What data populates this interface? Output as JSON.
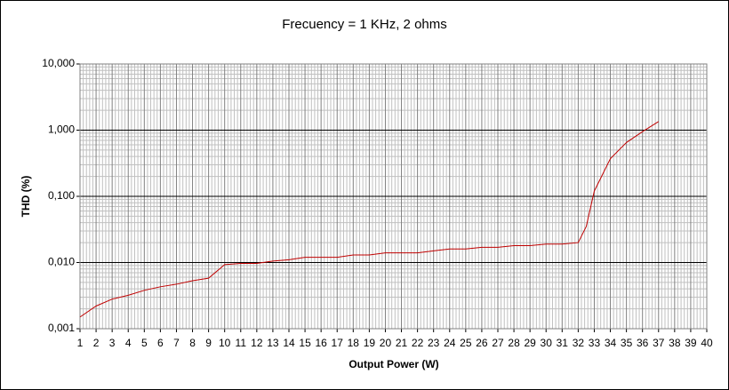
{
  "chart_data": {
    "type": "line",
    "title": "Frecuency = 1 KHz, 2 ohms",
    "x_label": "Output Power (W)",
    "y_label": "THD (%)",
    "x": [
      1,
      2,
      3,
      4,
      5,
      6,
      7,
      8,
      9,
      10,
      11,
      12,
      13,
      14,
      15,
      16,
      17,
      18,
      19,
      20,
      21,
      22,
      23,
      24,
      25,
      26,
      27,
      28,
      29,
      30,
      31,
      32,
      32.5,
      33,
      34,
      35,
      36,
      37
    ],
    "series": [
      {
        "color": "#c00000",
        "values": [
          0.0015,
          0.0022,
          0.0028,
          0.0032,
          0.0038,
          0.0043,
          0.0047,
          0.0053,
          0.0058,
          0.0093,
          0.0097,
          0.0097,
          0.0105,
          0.011,
          0.012,
          0.012,
          0.012,
          0.013,
          0.013,
          0.014,
          0.014,
          0.014,
          0.015,
          0.016,
          0.016,
          0.017,
          0.017,
          0.018,
          0.018,
          0.019,
          0.019,
          0.02,
          0.035,
          0.12,
          0.37,
          0.65,
          0.95,
          1.35
        ]
      }
    ],
    "xlim": [
      1,
      40
    ],
    "xticks": [
      1,
      2,
      3,
      4,
      5,
      6,
      7,
      8,
      9,
      10,
      11,
      12,
      13,
      14,
      15,
      16,
      17,
      18,
      19,
      20,
      21,
      22,
      23,
      24,
      25,
      26,
      27,
      28,
      29,
      30,
      31,
      32,
      33,
      34,
      35,
      36,
      37,
      38,
      39,
      40
    ],
    "ylim": [
      0.001,
      10
    ],
    "yticks": [
      {
        "value": 0.001,
        "label": "0,001"
      },
      {
        "value": 0.01,
        "label": "0,010"
      },
      {
        "value": 0.1,
        "label": "0,100"
      },
      {
        "value": 1,
        "label": "1,000"
      },
      {
        "value": 10,
        "label": "10,000"
      }
    ],
    "log_y": true,
    "grid": true,
    "minor_grid": true
  }
}
